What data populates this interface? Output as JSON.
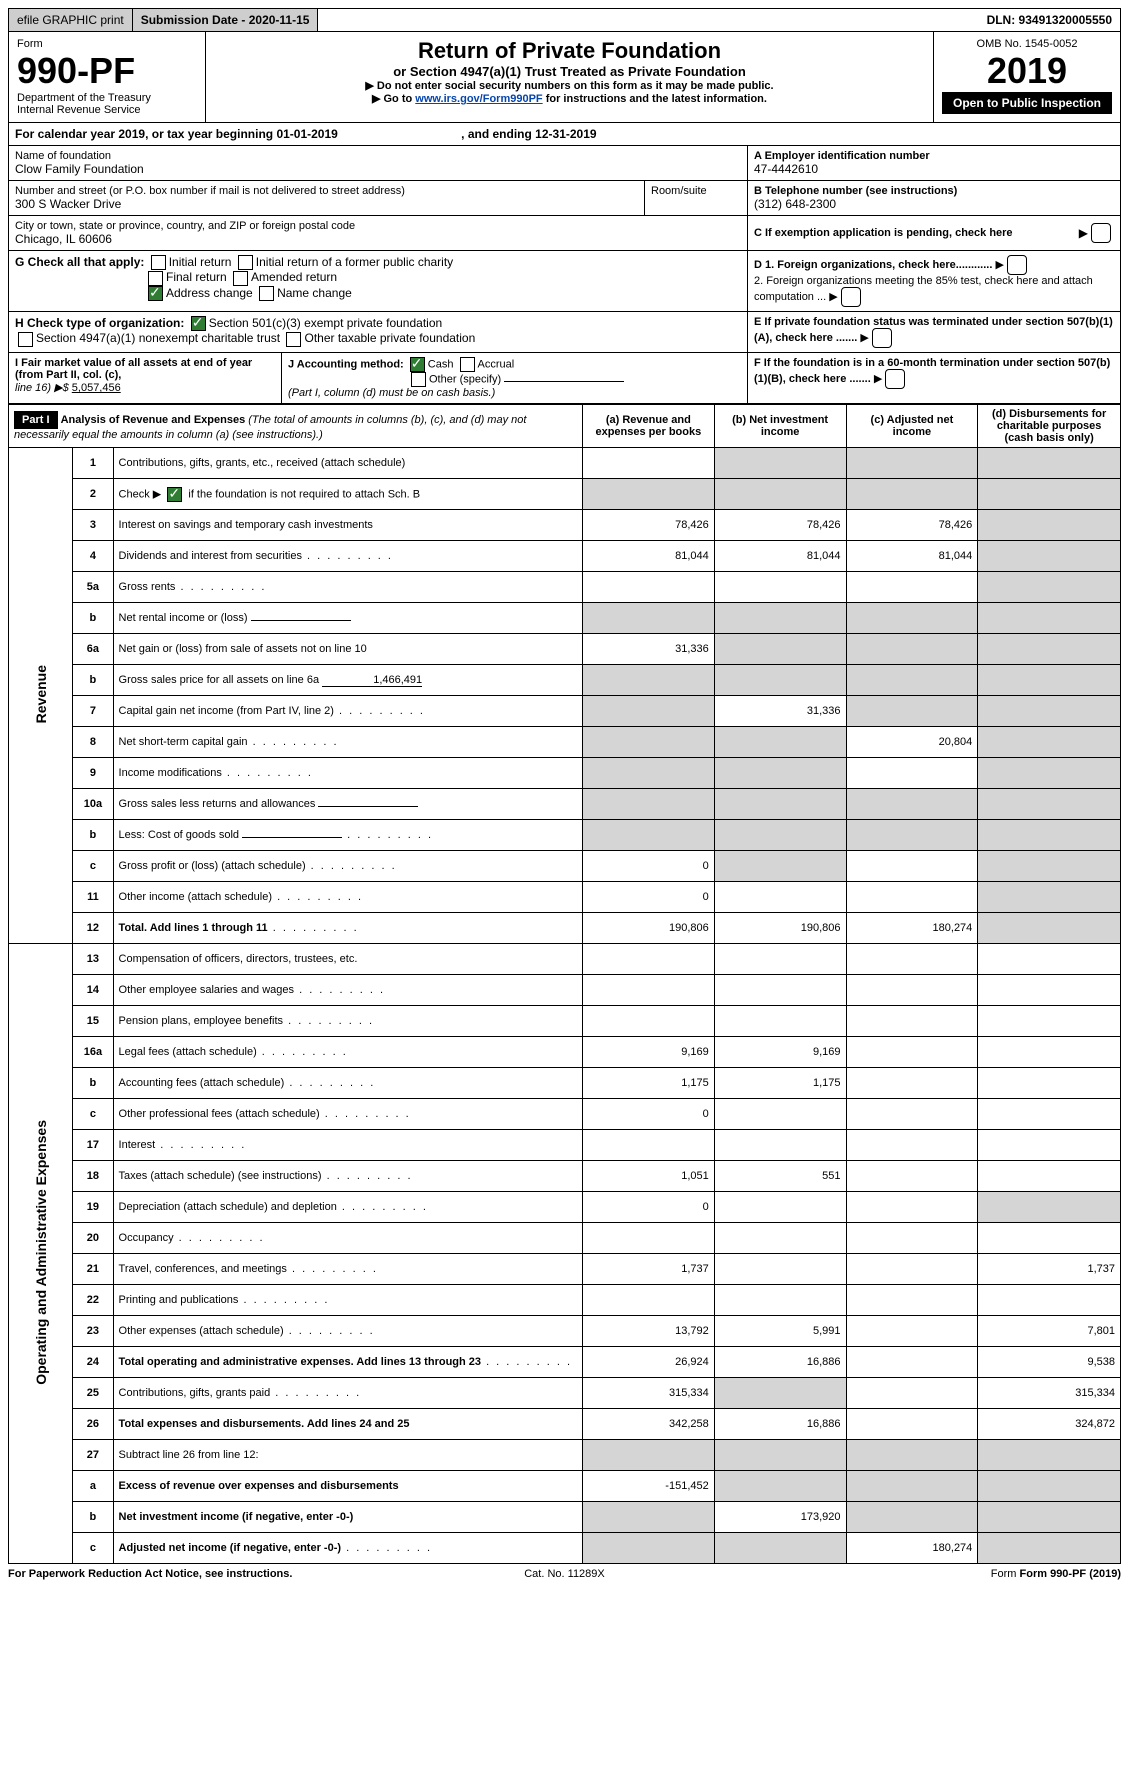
{
  "top": {
    "efile": "efile GRAPHIC print",
    "subdate_lbl": "Submission Date - 2020-11-15",
    "dln": "DLN: 93491320005550"
  },
  "head": {
    "form": "Form",
    "num": "990-PF",
    "dept": "Department of the Treasury",
    "irs": "Internal Revenue Service",
    "title": "Return of Private Foundation",
    "sub": "or Section 4947(a)(1) Trust Treated as Private Foundation",
    "warn1": "Do not enter social security numbers on this form as it may be made public.",
    "warn2": "Go to ",
    "link": "www.irs.gov/Form990PF",
    "warn3": " for instructions and the latest information.",
    "omb": "OMB No. 1545-0052",
    "year": "2019",
    "open": "Open to Public Inspection"
  },
  "cal": {
    "text": "For calendar year 2019, or tax year beginning 01-01-2019",
    "end": ", and ending 12-31-2019"
  },
  "name": {
    "lbl": "Name of foundation",
    "val": "Clow Family Foundation"
  },
  "ein": {
    "lbl": "A Employer identification number",
    "val": "47-4442610"
  },
  "addr": {
    "lbl": "Number and street (or P.O. box number if mail is not delivered to street address)",
    "val": "300 S Wacker Drive",
    "room": "Room/suite"
  },
  "tel": {
    "lbl": "B Telephone number (see instructions)",
    "val": "(312) 648-2300"
  },
  "city": {
    "lbl": "City or town, state or province, country, and ZIP or foreign postal code",
    "val": "Chicago, IL  60606"
  },
  "c": {
    "lbl": "C If exemption application is pending, check here"
  },
  "g": {
    "lbl": "G Check all that apply:",
    "o1": "Initial return",
    "o2": "Initial return of a former public charity",
    "o3": "Final return",
    "o4": "Amended return",
    "o5": "Address change",
    "o6": "Name change"
  },
  "d": {
    "d1": "D 1. Foreign organizations, check here............",
    "d2": "2. Foreign organizations meeting the 85% test, check here and attach computation ..."
  },
  "e": {
    "lbl": "E If private foundation status was terminated under section 507(b)(1)(A), check here ......."
  },
  "h": {
    "lbl": "H Check type of organization:",
    "o1": "Section 501(c)(3) exempt private foundation",
    "o2": "Section 4947(a)(1) nonexempt charitable trust",
    "o3": "Other taxable private foundation"
  },
  "i": {
    "lbl": "I Fair market value of all assets at end of year (from Part II, col. (c),",
    "line": "line 16) ▶$ ",
    "val": "5,057,456"
  },
  "j": {
    "lbl": "J Accounting method:",
    "cash": "Cash",
    "acc": "Accrual",
    "oth": "Other (specify)",
    "note": "(Part I, column (d) must be on cash basis.)"
  },
  "f": {
    "lbl": "F If the foundation is in a 60-month termination under section 507(b)(1)(B), check here ......."
  },
  "part1": {
    "hdr": "Part I",
    "title": "Analysis of Revenue and Expenses ",
    "note": "(The total of amounts in columns (b), (c), and (d) may not necessarily equal the amounts in column (a) (see instructions).)",
    "ca": "(a)  Revenue and expenses per books",
    "cb": "(b)  Net investment income",
    "cc": "(c)  Adjusted net income",
    "cd": "(d)  Disbursements for charitable purposes (cash basis only)"
  },
  "rev": "Revenue",
  "exp": "Operating and Administrative Expenses",
  "rows": [
    {
      "n": "1",
      "d": "Contributions, gifts, grants, etc., received (attach schedule)",
      "a": "",
      "b": "g",
      "c": "g",
      "dd": "g"
    },
    {
      "n": "2",
      "d": "Check ▶  if the foundation is not required to attach Sch. B",
      "cb": true,
      "a": "g",
      "b": "g",
      "c": "g",
      "dd": "g"
    },
    {
      "n": "3",
      "d": "Interest on savings and temporary cash investments",
      "a": "78,426",
      "b": "78,426",
      "c": "78,426",
      "dd": "g"
    },
    {
      "n": "4",
      "d": "Dividends and interest from securities",
      "dots": true,
      "a": "81,044",
      "b": "81,044",
      "c": "81,044",
      "dd": "g"
    },
    {
      "n": "5a",
      "d": "Gross rents",
      "dots": true,
      "a": "",
      "b": "",
      "c": "",
      "dd": "g"
    },
    {
      "n": "b",
      "d": "Net rental income or (loss)",
      "blank": true,
      "a": "g",
      "b": "g",
      "c": "g",
      "dd": "g"
    },
    {
      "n": "6a",
      "d": "Net gain or (loss) from sale of assets not on line 10",
      "a": "31,336",
      "b": "g",
      "c": "g",
      "dd": "g"
    },
    {
      "n": "b",
      "d": "Gross sales price for all assets on line 6a",
      "blank": true,
      "bv": "1,466,491",
      "a": "g",
      "b": "g",
      "c": "g",
      "dd": "g"
    },
    {
      "n": "7",
      "d": "Capital gain net income (from Part IV, line 2)",
      "dots": true,
      "a": "g",
      "b": "31,336",
      "c": "g",
      "dd": "g"
    },
    {
      "n": "8",
      "d": "Net short-term capital gain",
      "dots": true,
      "a": "g",
      "b": "g",
      "c": "20,804",
      "dd": "g"
    },
    {
      "n": "9",
      "d": "Income modifications",
      "dots": true,
      "a": "g",
      "b": "g",
      "c": "",
      "dd": "g"
    },
    {
      "n": "10a",
      "d": "Gross sales less returns and allowances",
      "blank": true,
      "a": "g",
      "b": "g",
      "c": "g",
      "dd": "g"
    },
    {
      "n": "b",
      "d": "Less: Cost of goods sold",
      "dots": true,
      "blank": true,
      "a": "g",
      "b": "g",
      "c": "g",
      "dd": "g"
    },
    {
      "n": "c",
      "d": "Gross profit or (loss) (attach schedule)",
      "dots": true,
      "a": "0",
      "b": "g",
      "c": "",
      "dd": "g"
    },
    {
      "n": "11",
      "d": "Other income (attach schedule)",
      "dots": true,
      "a": "0",
      "b": "",
      "c": "",
      "dd": "g"
    },
    {
      "n": "12",
      "d": "Total. Add lines 1 through 11",
      "dots": true,
      "bold": true,
      "a": "190,806",
      "b": "190,806",
      "c": "180,274",
      "dd": "g"
    },
    {
      "n": "13",
      "d": "Compensation of officers, directors, trustees, etc.",
      "a": "",
      "b": "",
      "c": "",
      "dd": "",
      "sec": "exp"
    },
    {
      "n": "14",
      "d": "Other employee salaries and wages",
      "dots": true,
      "a": "",
      "b": "",
      "c": "",
      "dd": ""
    },
    {
      "n": "15",
      "d": "Pension plans, employee benefits",
      "dots": true,
      "a": "",
      "b": "",
      "c": "",
      "dd": ""
    },
    {
      "n": "16a",
      "d": "Legal fees (attach schedule)",
      "dots": true,
      "a": "9,169",
      "b": "9,169",
      "c": "",
      "dd": ""
    },
    {
      "n": "b",
      "d": "Accounting fees (attach schedule)",
      "dots": true,
      "a": "1,175",
      "b": "1,175",
      "c": "",
      "dd": ""
    },
    {
      "n": "c",
      "d": "Other professional fees (attach schedule)",
      "dots": true,
      "a": "0",
      "b": "",
      "c": "",
      "dd": ""
    },
    {
      "n": "17",
      "d": "Interest",
      "dots": true,
      "a": "",
      "b": "",
      "c": "",
      "dd": ""
    },
    {
      "n": "18",
      "d": "Taxes (attach schedule) (see instructions)",
      "dots": true,
      "a": "1,051",
      "b": "551",
      "c": "",
      "dd": ""
    },
    {
      "n": "19",
      "d": "Depreciation (attach schedule) and depletion",
      "dots": true,
      "a": "0",
      "b": "",
      "c": "",
      "dd": "g"
    },
    {
      "n": "20",
      "d": "Occupancy",
      "dots": true,
      "a": "",
      "b": "",
      "c": "",
      "dd": ""
    },
    {
      "n": "21",
      "d": "Travel, conferences, and meetings",
      "dots": true,
      "a": "1,737",
      "b": "",
      "c": "",
      "dd": "1,737"
    },
    {
      "n": "22",
      "d": "Printing and publications",
      "dots": true,
      "a": "",
      "b": "",
      "c": "",
      "dd": ""
    },
    {
      "n": "23",
      "d": "Other expenses (attach schedule)",
      "dots": true,
      "a": "13,792",
      "b": "5,991",
      "c": "",
      "dd": "7,801"
    },
    {
      "n": "24",
      "d": "Total operating and administrative expenses. Add lines 13 through 23",
      "dots": true,
      "bold": true,
      "a": "26,924",
      "b": "16,886",
      "c": "",
      "dd": "9,538"
    },
    {
      "n": "25",
      "d": "Contributions, gifts, grants paid",
      "dots": true,
      "a": "315,334",
      "b": "g",
      "c": "",
      "dd": "315,334"
    },
    {
      "n": "26",
      "d": "Total expenses and disbursements. Add lines 24 and 25",
      "bold": true,
      "a": "342,258",
      "b": "16,886",
      "c": "",
      "dd": "324,872"
    },
    {
      "n": "27",
      "d": "Subtract line 26 from line 12:",
      "a": "g",
      "b": "g",
      "c": "g",
      "dd": "g"
    },
    {
      "n": "a",
      "d": "Excess of revenue over expenses and disbursements",
      "bold": true,
      "a": "-151,452",
      "b": "g",
      "c": "g",
      "dd": "g"
    },
    {
      "n": "b",
      "d": "Net investment income (if negative, enter -0-)",
      "bold": true,
      "a": "g",
      "b": "173,920",
      "c": "g",
      "dd": "g"
    },
    {
      "n": "c",
      "d": "Adjusted net income (if negative, enter -0-)",
      "dots": true,
      "bold": true,
      "a": "g",
      "b": "g",
      "c": "180,274",
      "dd": "g"
    }
  ],
  "foot": {
    "l": "For Paperwork Reduction Act Notice, see instructions.",
    "m": "Cat. No. 11289X",
    "r": "Form 990-PF (2019)"
  }
}
